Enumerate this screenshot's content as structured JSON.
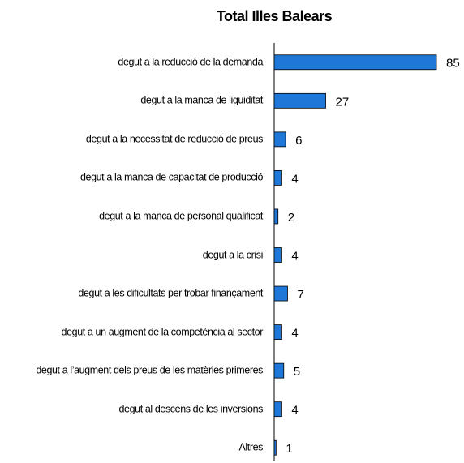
{
  "chart_data": {
    "type": "barh",
    "title": "Total Illes Balears",
    "categories": [
      "degut a la reducció de la demanda",
      "degut a la manca de liquiditat",
      "degut a la necessitat de reducció de preus",
      "degut a la manca de capacitat de producció",
      "degut a la manca de personal qualificat",
      "degut a la crisi",
      "degut a les dificultats per trobar finançament",
      "degut a un augment de la competència al sector",
      "degut a l’augment dels preus de les matèries primeres",
      "degut al descens de les inversions",
      "Altres"
    ],
    "values": [
      85,
      27,
      6,
      4,
      2,
      4,
      7,
      4,
      5,
      4,
      1
    ],
    "color": "#1f77d8",
    "xlim": [
      0,
      85
    ]
  }
}
